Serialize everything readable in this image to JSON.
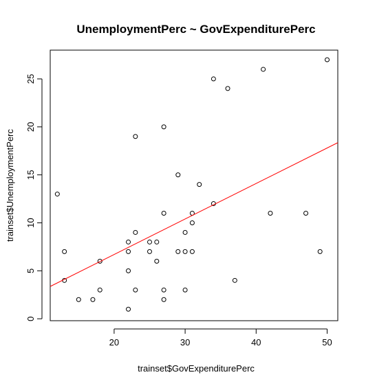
{
  "chart_data": {
    "type": "scatter",
    "title": "UnemploymentPerc ~ GovExpenditurePerc",
    "xlabel": "trainset$GovExpenditurePerc",
    "ylabel": "trainset$UnemploymentPerc",
    "xlim": [
      11,
      51.5
    ],
    "ylim": [
      -0.2,
      28
    ],
    "xticks": [
      20,
      30,
      40,
      50
    ],
    "xtick_labels": [
      "20",
      "30",
      "40",
      "50"
    ],
    "yticks": [
      0,
      5,
      10,
      15,
      20,
      25
    ],
    "ytick_labels": [
      "0",
      "5",
      "10",
      "15",
      "20",
      "25"
    ],
    "grid": false,
    "points": [
      {
        "x": 12,
        "y": 13
      },
      {
        "x": 13,
        "y": 7
      },
      {
        "x": 13,
        "y": 4
      },
      {
        "x": 15,
        "y": 2
      },
      {
        "x": 17,
        "y": 2
      },
      {
        "x": 18,
        "y": 6
      },
      {
        "x": 18,
        "y": 3
      },
      {
        "x": 22,
        "y": 8
      },
      {
        "x": 22,
        "y": 7
      },
      {
        "x": 22,
        "y": 5
      },
      {
        "x": 22,
        "y": 1
      },
      {
        "x": 23,
        "y": 19
      },
      {
        "x": 23,
        "y": 9
      },
      {
        "x": 23,
        "y": 3
      },
      {
        "x": 25,
        "y": 8
      },
      {
        "x": 25,
        "y": 7
      },
      {
        "x": 26,
        "y": 8
      },
      {
        "x": 26,
        "y": 6
      },
      {
        "x": 27,
        "y": 20
      },
      {
        "x": 27,
        "y": 11
      },
      {
        "x": 27,
        "y": 3
      },
      {
        "x": 27,
        "y": 2
      },
      {
        "x": 29,
        "y": 15
      },
      {
        "x": 29,
        "y": 7
      },
      {
        "x": 30,
        "y": 9
      },
      {
        "x": 30,
        "y": 7
      },
      {
        "x": 30,
        "y": 3
      },
      {
        "x": 31,
        "y": 11
      },
      {
        "x": 31,
        "y": 10
      },
      {
        "x": 31,
        "y": 7
      },
      {
        "x": 32,
        "y": 14
      },
      {
        "x": 34,
        "y": 25
      },
      {
        "x": 34,
        "y": 12
      },
      {
        "x": 36,
        "y": 24
      },
      {
        "x": 37,
        "y": 4
      },
      {
        "x": 41,
        "y": 26
      },
      {
        "x": 42,
        "y": 11
      },
      {
        "x": 47,
        "y": 11
      },
      {
        "x": 49,
        "y": 7
      },
      {
        "x": 50,
        "y": 27
      }
    ],
    "regression_line": {
      "color": "#ff0000",
      "intercept": -0.7,
      "slope": 0.37
    },
    "point_color": "#000000"
  }
}
